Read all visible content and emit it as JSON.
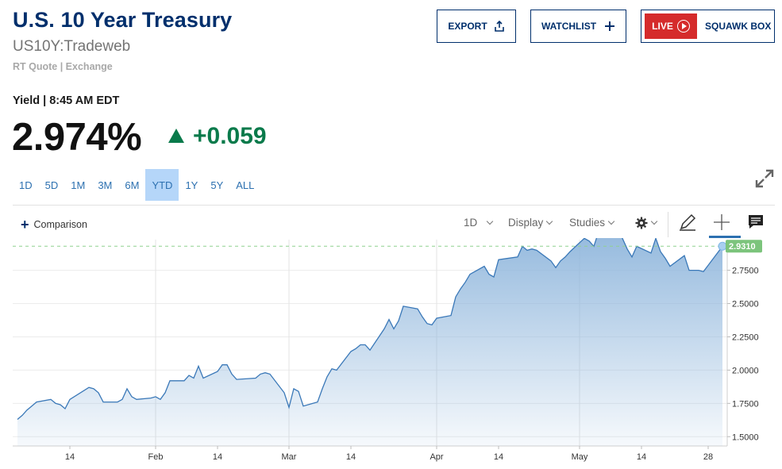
{
  "header": {
    "title": "U.S. 10 Year Treasury",
    "symbol": "US10Y:Tradeweb",
    "quote_source": "RT Quote | Exchange",
    "export_label": "EXPORT",
    "watchlist_label": "WATCHLIST",
    "live_label": "LIVE",
    "squawk_label": "SQUAWK BOX"
  },
  "quote": {
    "yield_label": "Yield | 8:45 AM EDT",
    "price": "2.974%",
    "change": "+0.059",
    "change_direction": "up",
    "up_color": "#0a7a4b"
  },
  "ranges": [
    "1D",
    "5D",
    "1M",
    "3M",
    "6M",
    "YTD",
    "1Y",
    "5Y",
    "ALL"
  ],
  "active_range": "YTD",
  "toolbar": {
    "comparison_label": "Comparison",
    "interval_label": "1D",
    "display_label": "Display",
    "studies_label": "Studies",
    "icons": [
      "gear-icon",
      "pencil-icon",
      "crosshair-icon",
      "comment-icon"
    ]
  },
  "chart_data": {
    "type": "area",
    "title": "",
    "xlabel": "",
    "ylabel": "",
    "ylim": [
      1.43,
      2.98
    ],
    "y_ticks": [
      1.5,
      1.75,
      2.0,
      2.25,
      2.5,
      2.75
    ],
    "y_tick_labels": [
      "1.5000",
      "1.7500",
      "2.0000",
      "2.2500",
      "2.5000",
      "2.7500"
    ],
    "x_tick_labels": [
      "14",
      "Feb",
      "14",
      "Mar",
      "14",
      "Apr",
      "14",
      "May",
      "14",
      "28"
    ],
    "x_ticks": [
      "2022-01-14",
      "2022-02-01",
      "2022-02-14",
      "2022-03-01",
      "2022-03-14",
      "2022-04-01",
      "2022-04-14",
      "2022-05-01",
      "2022-05-14",
      "2022-05-28"
    ],
    "x_range": [
      "2022-01-02",
      "2022-06-01"
    ],
    "reference_line": 2.931,
    "last_value_label": "2.9310",
    "line_color": "#3a78b8",
    "fill_color": "#8fb6dc",
    "ref_line_color": "#8fd18f",
    "badge_color": "#7cc47c",
    "series": [
      {
        "x": [
          "2022-01-03",
          "2022-01-04",
          "2022-01-05",
          "2022-01-06",
          "2022-01-07",
          "2022-01-10",
          "2022-01-11",
          "2022-01-12",
          "2022-01-13",
          "2022-01-14",
          "2022-01-18",
          "2022-01-19",
          "2022-01-20",
          "2022-01-21",
          "2022-01-24",
          "2022-01-25",
          "2022-01-26",
          "2022-01-27",
          "2022-01-28",
          "2022-01-31",
          "2022-02-01",
          "2022-02-02",
          "2022-02-03",
          "2022-02-04",
          "2022-02-07",
          "2022-02-08",
          "2022-02-09",
          "2022-02-10",
          "2022-02-11",
          "2022-02-14",
          "2022-02-15",
          "2022-02-16",
          "2022-02-17",
          "2022-02-18",
          "2022-02-22",
          "2022-02-23",
          "2022-02-24",
          "2022-02-25",
          "2022-02-28",
          "2022-03-01",
          "2022-03-02",
          "2022-03-03",
          "2022-03-04",
          "2022-03-07",
          "2022-03-08",
          "2022-03-09",
          "2022-03-10",
          "2022-03-11",
          "2022-03-14",
          "2022-03-15",
          "2022-03-16",
          "2022-03-17",
          "2022-03-18",
          "2022-03-21",
          "2022-03-22",
          "2022-03-23",
          "2022-03-24",
          "2022-03-25",
          "2022-03-28",
          "2022-03-29",
          "2022-03-30",
          "2022-03-31",
          "2022-04-01",
          "2022-04-04",
          "2022-04-05",
          "2022-04-06",
          "2022-04-07",
          "2022-04-08",
          "2022-04-11",
          "2022-04-12",
          "2022-04-13",
          "2022-04-14",
          "2022-04-18",
          "2022-04-19",
          "2022-04-20",
          "2022-04-21",
          "2022-04-22",
          "2022-04-25",
          "2022-04-26",
          "2022-04-27",
          "2022-04-28",
          "2022-04-29",
          "2022-05-02",
          "2022-05-03",
          "2022-05-04",
          "2022-05-05",
          "2022-05-06",
          "2022-05-09",
          "2022-05-10",
          "2022-05-11",
          "2022-05-12",
          "2022-05-13",
          "2022-05-16",
          "2022-05-17",
          "2022-05-18",
          "2022-05-19",
          "2022-05-20",
          "2022-05-23",
          "2022-05-24",
          "2022-05-25",
          "2022-05-26",
          "2022-05-27",
          "2022-05-31"
        ],
        "values": [
          1.63,
          1.66,
          1.7,
          1.73,
          1.76,
          1.78,
          1.75,
          1.74,
          1.71,
          1.78,
          1.87,
          1.86,
          1.83,
          1.76,
          1.76,
          1.78,
          1.86,
          1.8,
          1.78,
          1.79,
          1.8,
          1.78,
          1.83,
          1.92,
          1.92,
          1.96,
          1.94,
          2.03,
          1.94,
          1.99,
          2.04,
          2.04,
          1.97,
          1.93,
          1.94,
          1.97,
          1.98,
          1.97,
          1.83,
          1.72,
          1.86,
          1.84,
          1.73,
          1.76,
          1.86,
          1.95,
          2.01,
          2.0,
          2.14,
          2.16,
          2.19,
          2.19,
          2.15,
          2.31,
          2.38,
          2.31,
          2.37,
          2.48,
          2.46,
          2.4,
          2.35,
          2.34,
          2.39,
          2.41,
          2.55,
          2.61,
          2.66,
          2.72,
          2.78,
          2.72,
          2.7,
          2.83,
          2.85,
          2.93,
          2.9,
          2.91,
          2.9,
          2.82,
          2.77,
          2.82,
          2.85,
          2.89,
          2.99,
          2.97,
          2.93,
          3.04,
          3.13,
          3.03,
          2.99,
          2.91,
          2.85,
          2.93,
          2.88,
          2.99,
          2.89,
          2.84,
          2.78,
          2.86,
          2.75,
          2.75,
          2.75,
          2.74,
          2.93
        ]
      }
    ]
  }
}
